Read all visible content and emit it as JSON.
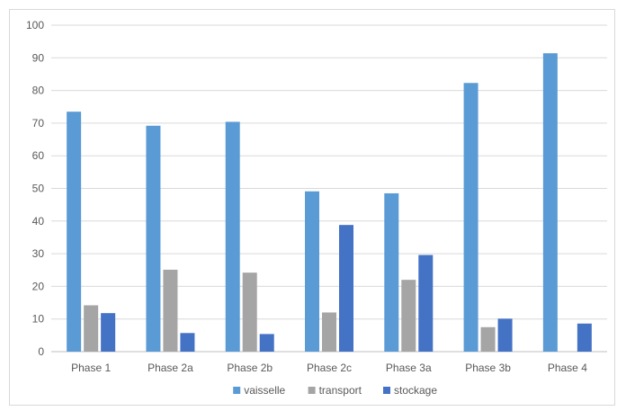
{
  "chart_data": {
    "type": "bar",
    "title": "",
    "xlabel": "",
    "ylabel": "",
    "ylim": [
      0,
      100
    ],
    "ytick_step": 10,
    "grid": true,
    "legend_position": "bottom",
    "categories": [
      "Phase 1",
      "Phase 2a",
      "Phase 2b",
      "Phase 2c",
      "Phase 3a",
      "Phase 3b",
      "Phase 4"
    ],
    "series": [
      {
        "name": "vaisselle",
        "color": "#5b9bd5",
        "values": [
          73.5,
          69.2,
          70.4,
          49.1,
          48.5,
          82.3,
          91.4
        ]
      },
      {
        "name": "transport",
        "color": "#a5a5a5",
        "values": [
          14.2,
          25.1,
          24.2,
          12.0,
          22.0,
          7.5,
          null
        ]
      },
      {
        "name": "stockage",
        "color": "#4472c4",
        "values": [
          11.8,
          5.7,
          5.4,
          38.8,
          29.6,
          10.1,
          8.6
        ]
      }
    ]
  }
}
